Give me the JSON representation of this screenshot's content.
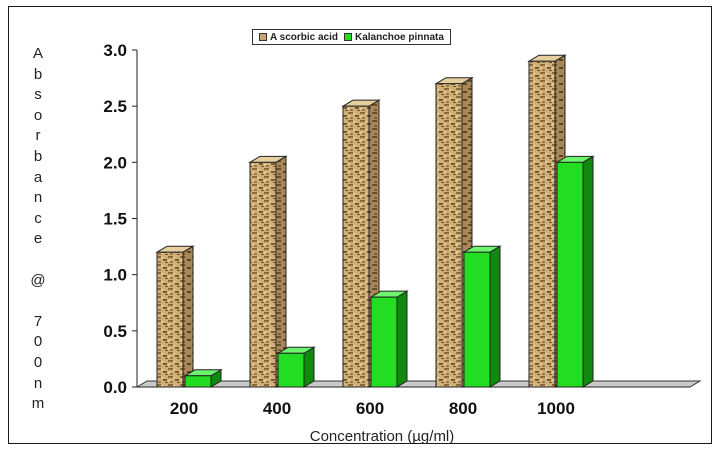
{
  "chart_data": {
    "type": "bar",
    "categories": [
      "200",
      "400",
      "600",
      "800",
      "1000"
    ],
    "series": [
      {
        "name": "A scorbic acid",
        "values": [
          1.2,
          2.0,
          2.5,
          2.7,
          2.9
        ],
        "color": "#c8a46a"
      },
      {
        "name": "Kalanchoe pinnata",
        "values": [
          0.1,
          0.3,
          0.8,
          1.2,
          2.0
        ],
        "color": "#22dd22"
      }
    ],
    "title": "",
    "xlabel": "Concentration (µg/ml)",
    "ylabel": "Absorbance @ 700nm",
    "ylim": [
      0,
      3.0
    ],
    "yticks": [
      "0.0",
      "0.5",
      "1.0",
      "1.5",
      "2.0",
      "2.5",
      "3.0"
    ],
    "grid": false,
    "legend_position": "top-center"
  }
}
